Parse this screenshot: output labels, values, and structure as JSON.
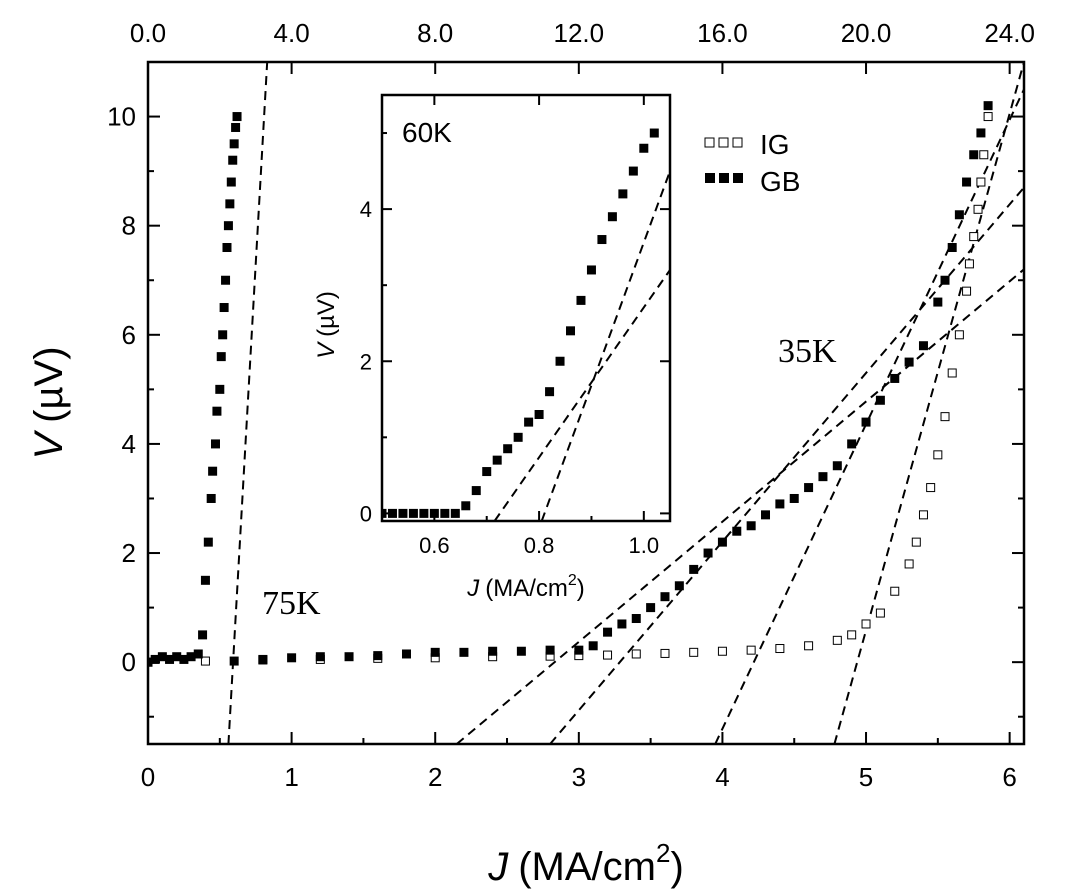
{
  "chart_data": [
    {
      "type": "scatter",
      "xlabel_italic": "J",
      "xlabel_units": "(MA/cm",
      "xlabel_sup": "2",
      "xlabel_close": ")",
      "ylabel_italic": "V",
      "ylabel_units": "(µV)",
      "xlim": [
        0,
        6.1
      ],
      "ylim": [
        -1.5,
        11
      ],
      "x_ticks": [
        "0",
        "1",
        "2",
        "3",
        "4",
        "5",
        "6"
      ],
      "x_tick_values": [
        0,
        1,
        2,
        3,
        4,
        5,
        6
      ],
      "y_ticks": [
        "0",
        "2",
        "4",
        "6",
        "8",
        "10"
      ],
      "y_tick_values": [
        0,
        2,
        4,
        6,
        8,
        10
      ],
      "top_axis_ticks": [
        "0.0",
        "4.0",
        "8.0",
        "12.0",
        "16.0",
        "20.0",
        "24.0"
      ],
      "top_axis_values": [
        0,
        4,
        8,
        12,
        16,
        20,
        24
      ],
      "top_axis_lim": [
        0,
        24.4
      ],
      "legend": {
        "placement": "top-right",
        "entries": [
          {
            "label": "IG",
            "marker": "open-square"
          },
          {
            "label": "GB",
            "marker": "filled-square"
          }
        ]
      },
      "annotations": [
        {
          "text": "75K",
          "x": 0.82,
          "y": 1.1
        },
        {
          "text": "35K",
          "x": 4.4,
          "y": 5.4
        }
      ],
      "series": [
        {
          "name": "GB",
          "marker": "filled-square",
          "x": [
            0,
            0.05,
            0.1,
            0.15,
            0.2,
            0.25,
            0.3,
            0.35,
            0.38,
            0.4,
            0.42,
            0.44,
            0.45,
            0.47,
            0.48,
            0.5,
            0.51,
            0.52,
            0.53,
            0.54,
            0.55,
            0.56,
            0.57,
            0.58,
            0.59,
            0.6,
            0.61,
            0.62
          ],
          "y": [
            0,
            0.05,
            0.1,
            0.05,
            0.1,
            0.05,
            0.1,
            0.15,
            0.5,
            1.5,
            2.2,
            3.0,
            3.5,
            4.0,
            4.6,
            5.0,
            5.6,
            6.0,
            6.5,
            7.0,
            7.6,
            8.0,
            8.4,
            8.8,
            9.2,
            9.5,
            9.8,
            10.0
          ]
        },
        {
          "name": "GB",
          "marker": "filled-square",
          "x": [
            0.6,
            0.8,
            1.0,
            1.2,
            1.4,
            1.6,
            1.8,
            2.0,
            2.2,
            2.4,
            2.6,
            2.8,
            3.0,
            3.1,
            3.2,
            3.3,
            3.4,
            3.5,
            3.6,
            3.7,
            3.8,
            3.9,
            4.0,
            4.1,
            4.2,
            4.3,
            4.4,
            4.5,
            4.6,
            4.7,
            4.8,
            4.9,
            5.0,
            5.1,
            5.2,
            5.3,
            5.4,
            5.5,
            5.55,
            5.6,
            5.65,
            5.7,
            5.75,
            5.8,
            5.85
          ],
          "y": [
            0.02,
            0.05,
            0.08,
            0.1,
            0.1,
            0.12,
            0.15,
            0.18,
            0.18,
            0.2,
            0.2,
            0.22,
            0.22,
            0.3,
            0.55,
            0.7,
            0.8,
            1.0,
            1.2,
            1.4,
            1.7,
            2.0,
            2.2,
            2.4,
            2.5,
            2.7,
            2.9,
            3.0,
            3.2,
            3.4,
            3.6,
            4.0,
            4.4,
            4.8,
            5.2,
            5.5,
            5.8,
            6.6,
            7.0,
            7.6,
            8.2,
            8.8,
            9.3,
            9.7,
            10.2
          ]
        },
        {
          "name": "IG",
          "marker": "open-square",
          "x": [
            0,
            0.4,
            0.8,
            1.2,
            1.6,
            2.0,
            2.4,
            2.8,
            3.0,
            3.2,
            3.4,
            3.6,
            3.8,
            4.0,
            4.2,
            4.4,
            4.6,
            4.8,
            4.9,
            5.0,
            5.1,
            5.2,
            5.3,
            5.35,
            5.4,
            5.45,
            5.5,
            5.55,
            5.6,
            5.65,
            5.7,
            5.72,
            5.75,
            5.78,
            5.8,
            5.82,
            5.85
          ],
          "y": [
            0,
            0.02,
            0.04,
            0.05,
            0.07,
            0.08,
            0.1,
            0.11,
            0.12,
            0.13,
            0.15,
            0.16,
            0.18,
            0.2,
            0.22,
            0.25,
            0.3,
            0.4,
            0.5,
            0.7,
            0.9,
            1.3,
            1.8,
            2.2,
            2.7,
            3.2,
            3.8,
            4.5,
            5.3,
            6.0,
            6.8,
            7.3,
            7.8,
            8.3,
            8.8,
            9.3,
            10.0
          ]
        }
      ],
      "fit_lines": [
        {
          "x": [
            0.56,
            0.83
          ],
          "y": [
            -1.5,
            11
          ]
        },
        {
          "x": [
            2.15,
            6.1
          ],
          "y": [
            -1.5,
            7.2
          ]
        },
        {
          "x": [
            2.8,
            6.1
          ],
          "y": [
            -1.5,
            8.7
          ]
        },
        {
          "x": [
            3.95,
            6.1
          ],
          "y": [
            -1.5,
            10.5
          ]
        },
        {
          "x": [
            4.78,
            6.1
          ],
          "y": [
            -1.5,
            11
          ]
        }
      ]
    },
    {
      "type": "scatter",
      "inset": true,
      "xlabel_italic": "J",
      "xlabel_units": "(MA/cm",
      "xlabel_sup": "2",
      "xlabel_close": ")",
      "ylabel_italic": "V",
      "ylabel_units": "(µV)",
      "xlim": [
        0.5,
        1.05
      ],
      "ylim": [
        -0.1,
        5.5
      ],
      "x_ticks": [
        "0.6",
        "0.8",
        "1.0"
      ],
      "x_tick_values": [
        0.6,
        0.8,
        1.0
      ],
      "y_ticks": [
        "0",
        "2",
        "4"
      ],
      "y_tick_values": [
        0,
        2,
        4
      ],
      "annotations": [
        {
          "text": "60K",
          "x": 0.53,
          "y": 4.85
        }
      ],
      "series": [
        {
          "name": "GB",
          "marker": "filled-square",
          "x": [
            0.5,
            0.52,
            0.54,
            0.56,
            0.58,
            0.6,
            0.62,
            0.64,
            0.66,
            0.68,
            0.7,
            0.72,
            0.74,
            0.76,
            0.78,
            0.8,
            0.82,
            0.84,
            0.86,
            0.88,
            0.9,
            0.92,
            0.94,
            0.96,
            0.98,
            1.0,
            1.02
          ],
          "y": [
            0.0,
            0.0,
            0.0,
            0.0,
            0.0,
            0.0,
            0.0,
            0.0,
            0.1,
            0.3,
            0.55,
            0.7,
            0.85,
            1.0,
            1.2,
            1.3,
            1.6,
            2.0,
            2.4,
            2.8,
            3.2,
            3.6,
            3.9,
            4.2,
            4.5,
            4.8,
            5.0
          ]
        }
      ],
      "fit_lines": [
        {
          "x": [
            0.715,
            1.05
          ],
          "y": [
            -0.1,
            3.2
          ]
        },
        {
          "x": [
            0.805,
            1.05
          ],
          "y": [
            -0.1,
            4.5
          ]
        }
      ]
    }
  ]
}
